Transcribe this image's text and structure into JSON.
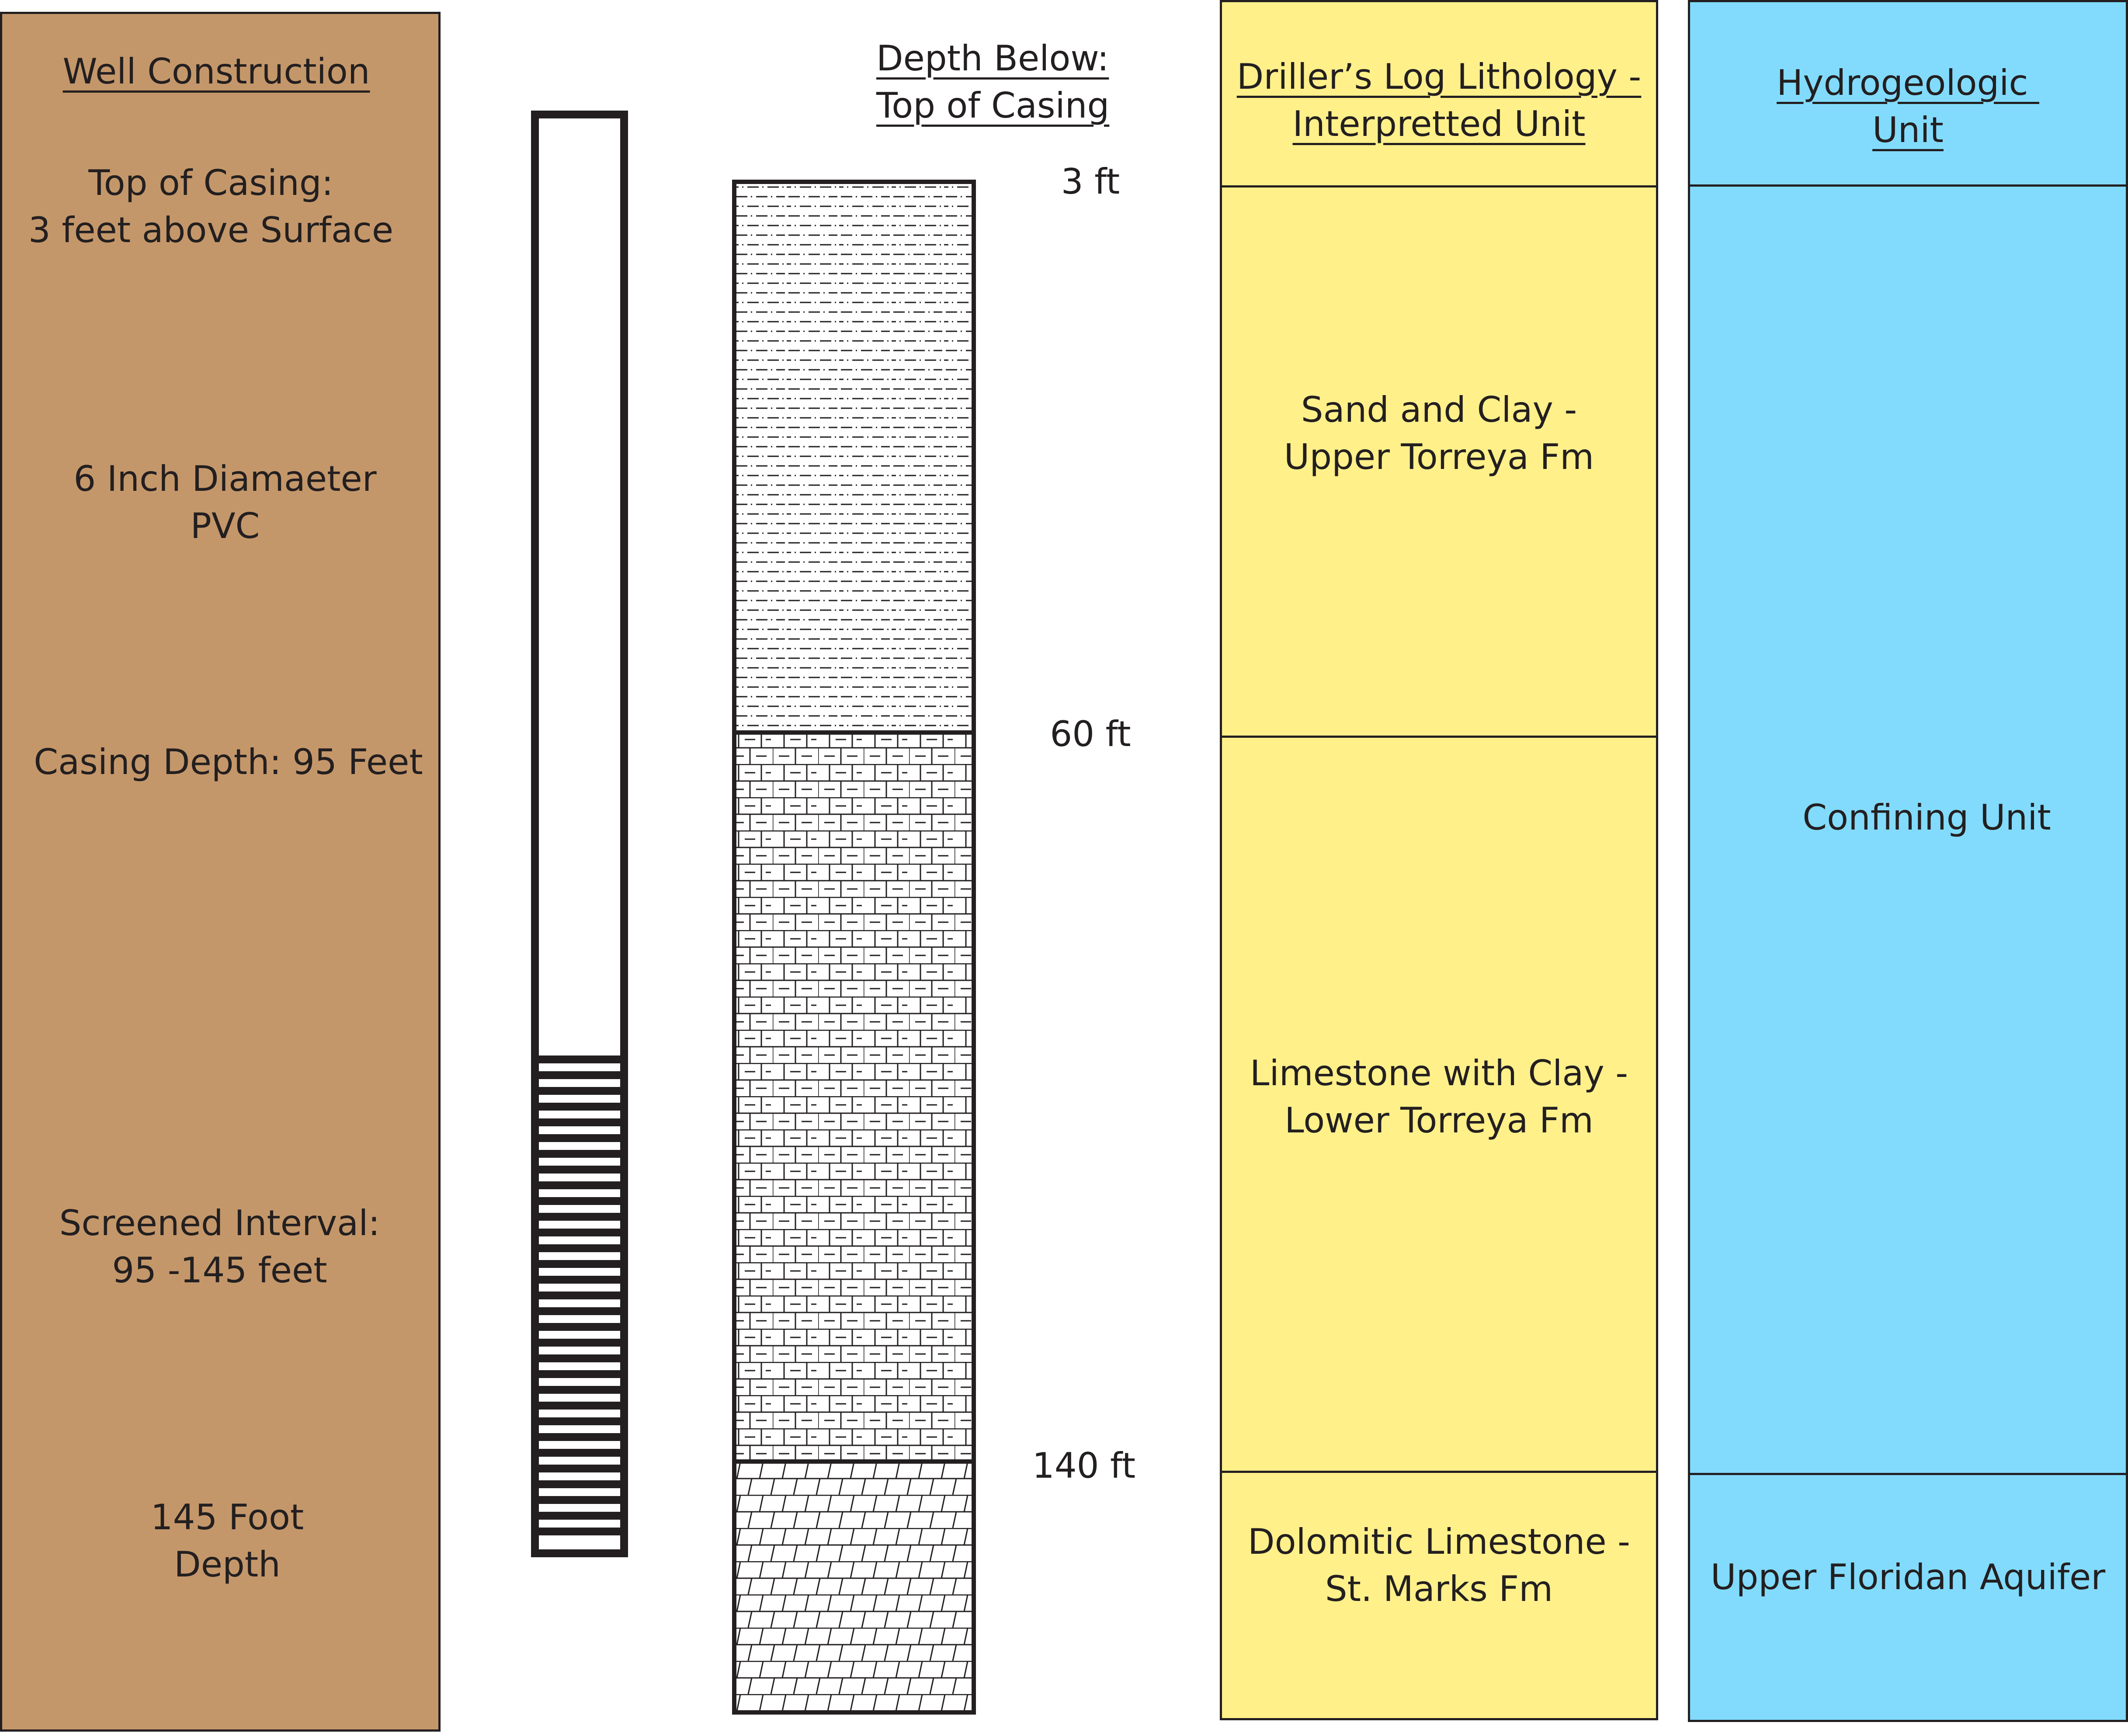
{
  "well_construction": {
    "header": "Well Construction",
    "top_of_casing": "Top of Casing:\n3 feet above Surface",
    "diameter": "6 Inch Diamaeter\nPVC",
    "casing_depth": "Casing Depth: 95 Feet",
    "screened_interval": "Screened Interval:\n95 -145 feet",
    "total_depth": "145 Foot\nDepth"
  },
  "depth_column": {
    "header": "Depth Below:\nTop of Casing",
    "markers": [
      "3 ft",
      "60 ft",
      "140 ft"
    ]
  },
  "lithology": {
    "header": "Driller’s Log Lithology -\nInterpretted Unit",
    "units": [
      {
        "label": "Sand and Clay -\nUpper Torreya Fm",
        "pattern": "sand-clay"
      },
      {
        "label": "Limestone with Clay -\nLower Torreya Fm",
        "pattern": "limestone-clay"
      },
      {
        "label": "Dolomitic Limestone -\nSt. Marks Fm",
        "pattern": "dolomitic-limestone"
      }
    ]
  },
  "hydrogeology": {
    "header": "Hydrogeologic \nUnit",
    "units": [
      {
        "label": "Confining Unit"
      },
      {
        "label": "Upper Floridan Aquifer"
      }
    ]
  },
  "colors": {
    "well_panel": "#c4976a",
    "lithology_panel": "#fff08a",
    "hydro_panel": "#82dbfd",
    "line": "#231f20"
  }
}
